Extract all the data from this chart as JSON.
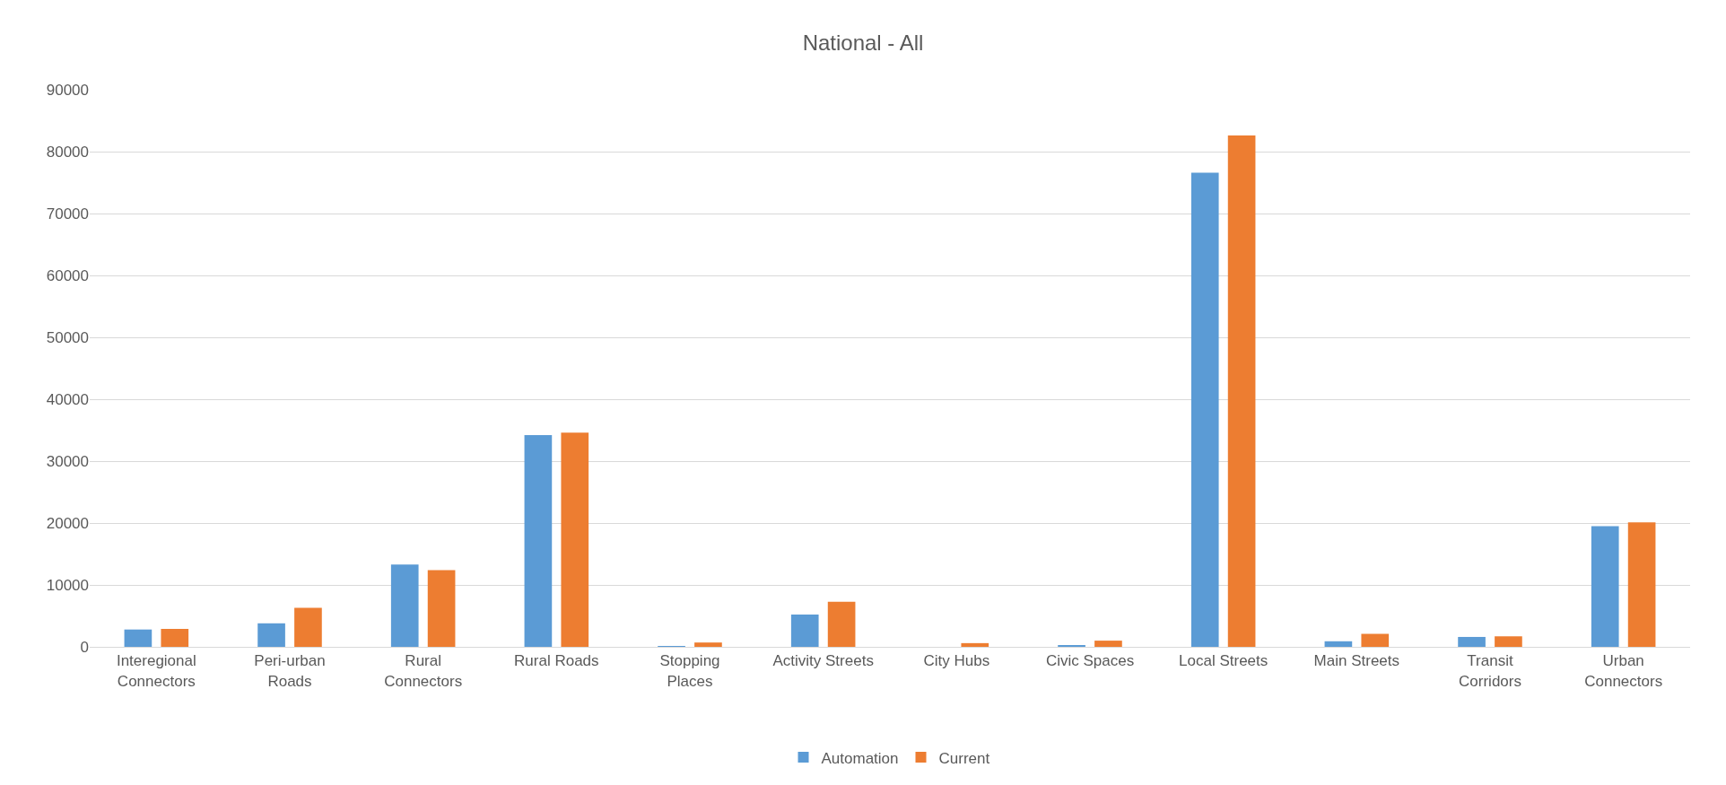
{
  "chart_data": {
    "type": "bar",
    "title": "National - All",
    "categories": [
      "Interegional\nConnectors",
      "Peri-urban\nRoads",
      "Rural\nConnectors",
      "Rural Roads",
      "Stopping\nPlaces",
      "Activity Streets",
      "City Hubs",
      "Civic Spaces",
      "Local Streets",
      "Main Streets",
      "Transit\nCorridors",
      "Urban\nConnectors"
    ],
    "series": [
      {
        "name": "Automation",
        "color": "#5b9bd5",
        "values": [
          2800,
          3800,
          13300,
          34200,
          100,
          5200,
          0,
          200,
          76600,
          900,
          1600,
          19500
        ]
      },
      {
        "name": "Current",
        "color": "#ed7d31",
        "values": [
          2900,
          6300,
          12400,
          34600,
          700,
          7300,
          600,
          1000,
          82600,
          2100,
          1700,
          20100
        ]
      }
    ],
    "ylim": [
      0,
      90000
    ],
    "yticks": [
      0,
      10000,
      20000,
      30000,
      40000,
      50000,
      60000,
      70000,
      80000,
      90000
    ],
    "grid": "y",
    "legend": "bottom"
  }
}
